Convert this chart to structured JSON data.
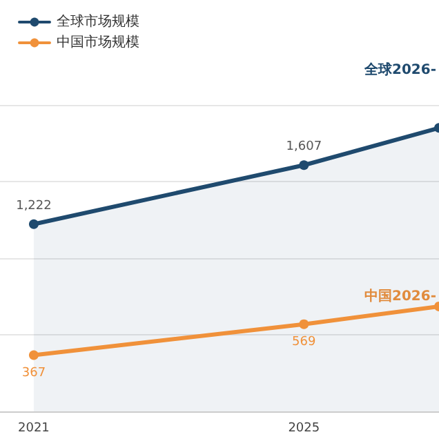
{
  "chart_data": {
    "type": "line",
    "x": [
      2021,
      2025,
      2027
    ],
    "xlim": [
      2020.5,
      2027
    ],
    "xticks": [
      2021,
      2025
    ],
    "ylim": [
      0,
      2000
    ],
    "yticks": [
      {
        "value": 0,
        "label": null
      },
      {
        "value": 500,
        "label": null
      },
      {
        "value": 1000,
        "label": null
      },
      {
        "value": 1500,
        "label": null
      },
      {
        "value": 2000,
        "label": null
      }
    ],
    "series": [
      {
        "name": "全球市场规模",
        "type": "area",
        "color": "#1f4a6e",
        "values": [
          1222,
          1607,
          1850
        ],
        "value_labels": [
          "1,222",
          "1,607",
          null
        ]
      },
      {
        "name": "中国市场规模",
        "color": "#f0913a",
        "values": [
          367,
          569,
          685
        ],
        "value_labels": [
          "367",
          "569",
          null
        ]
      }
    ],
    "annotations": [
      "全球2026-",
      "中国2026-"
    ],
    "tick_labels": "x",
    "grid": "y",
    "legend": "top left",
    "marker": "circle",
    "line_style": "solid"
  }
}
